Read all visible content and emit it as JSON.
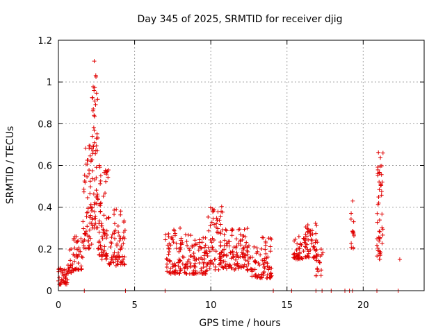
{
  "chart_data": {
    "type": "scatter",
    "title": "Day 345 of 2025, SRMTID for receiver djig",
    "xlabel": "GPS time / hours",
    "ylabel": "SRMTID / TECUs",
    "xlim": [
      0,
      24
    ],
    "ylim": [
      0,
      1.2
    ],
    "xticks": [
      0,
      5,
      10,
      15,
      20
    ],
    "xtick_labels": [
      "0",
      "5",
      "10",
      "15",
      "20"
    ],
    "yticks": [
      0,
      0.2,
      0.4,
      0.6,
      0.8,
      1.0,
      1.2
    ],
    "ytick_labels": [
      "0",
      "0.2",
      "0.4",
      "0.6",
      "0.8",
      "1",
      "1.2"
    ],
    "grid": true,
    "marker": "plus",
    "color": "#e00000",
    "clusters": [
      {
        "x_start": 0.0,
        "x_end": 0.6,
        "y_min": 0.03,
        "y_max": 0.11,
        "n": 40
      },
      {
        "x_start": 0.6,
        "x_end": 1.0,
        "y_min": 0.08,
        "y_max": 0.2,
        "n": 20
      },
      {
        "x_start": 1.0,
        "x_end": 1.6,
        "y_min": 0.1,
        "y_max": 0.26,
        "n": 35
      },
      {
        "x_start": 1.6,
        "x_end": 2.2,
        "y_min": 0.2,
        "y_max": 0.7,
        "n": 60
      },
      {
        "x_start": 2.2,
        "x_end": 2.6,
        "y_min": 0.3,
        "y_max": 1.1,
        "n": 60
      },
      {
        "x_start": 2.6,
        "x_end": 3.3,
        "y_min": 0.15,
        "y_max": 0.6,
        "n": 70
      },
      {
        "x_start": 3.3,
        "x_end": 4.4,
        "y_min": 0.12,
        "y_max": 0.4,
        "n": 70
      },
      {
        "x_start": 7.0,
        "x_end": 8.0,
        "y_min": 0.08,
        "y_max": 0.3,
        "n": 60
      },
      {
        "x_start": 8.0,
        "x_end": 9.8,
        "y_min": 0.08,
        "y_max": 0.27,
        "n": 110
      },
      {
        "x_start": 9.8,
        "x_end": 10.8,
        "y_min": 0.1,
        "y_max": 0.41,
        "n": 70
      },
      {
        "x_start": 10.8,
        "x_end": 12.4,
        "y_min": 0.1,
        "y_max": 0.3,
        "n": 100
      },
      {
        "x_start": 12.4,
        "x_end": 14.0,
        "y_min": 0.06,
        "y_max": 0.26,
        "n": 90
      },
      {
        "x_start": 15.4,
        "x_end": 16.2,
        "y_min": 0.15,
        "y_max": 0.26,
        "n": 45
      },
      {
        "x_start": 16.2,
        "x_end": 17.0,
        "y_min": 0.15,
        "y_max": 0.33,
        "n": 50
      },
      {
        "x_start": 16.9,
        "x_end": 17.4,
        "y_min": 0.07,
        "y_max": 0.2,
        "n": 18
      },
      {
        "x_start": 19.2,
        "x_end": 19.4,
        "y_min": 0.2,
        "y_max": 0.45,
        "n": 14
      },
      {
        "x_start": 20.9,
        "x_end": 21.3,
        "y_min": 0.15,
        "y_max": 0.67,
        "n": 50
      }
    ],
    "zero_points_x": [
      1.7,
      7.0,
      14.1,
      15.3,
      16.9,
      17.3,
      17.9,
      18.8,
      19.1,
      19.3,
      20.9,
      22.3
    ],
    "isolated_points": [
      {
        "x": 0.15,
        "y": 0.1
      },
      {
        "x": 4.4,
        "y": 0.0
      },
      {
        "x": 22.4,
        "y": 0.15
      },
      {
        "x": 21.3,
        "y": 0.66
      },
      {
        "x": 2.35,
        "y": 1.1
      }
    ]
  }
}
